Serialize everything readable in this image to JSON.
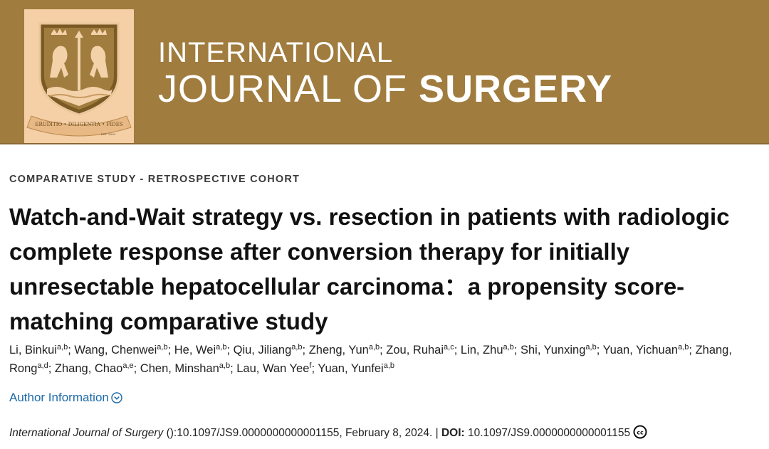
{
  "header": {
    "journal_line1": "INTERNATIONAL",
    "journal_line2_light": "JOURNAL OF ",
    "journal_line2_bold": "SURGERY",
    "crest_motto": "ERUDITIO • DILIGENTIA • FIDES",
    "crest_year": "EST. 2003",
    "colors": {
      "banner": "#a07c3e",
      "crest_bg": "#f5cfa6"
    }
  },
  "article": {
    "category": "COMPARATIVE STUDY - RETROSPECTIVE COHORT",
    "title": "Watch-and-Wait strategy vs. resection in patients with radiologic complete response after conversion therapy for initially unresectable hepatocellular carcinoma：a propensity score-matching comparative study",
    "authors": [
      {
        "name": "Li, Binkui",
        "aff": "a,b"
      },
      {
        "name": "Wang, Chenwei",
        "aff": "a,b"
      },
      {
        "name": "He, Wei",
        "aff": "a,b"
      },
      {
        "name": "Qiu, Jiliang",
        "aff": "a,b"
      },
      {
        "name": "Zheng, Yun",
        "aff": "a,b"
      },
      {
        "name": "Zou, Ruhai",
        "aff": "a,c"
      },
      {
        "name": "Lin, Zhu",
        "aff": "a,b"
      },
      {
        "name": "Shi, Yunxing",
        "aff": "a,b"
      },
      {
        "name": "Yuan, Yichuan",
        "aff": "a,b"
      },
      {
        "name": "Zhang, Rong",
        "aff": "a,d"
      },
      {
        "name": "Zhang, Chao",
        "aff": "a,e"
      },
      {
        "name": "Chen, Minshan",
        "aff": "a,b"
      },
      {
        "name": "Lau, Wan Yee",
        "aff": "f"
      },
      {
        "name": "Yuan, Yunfei",
        "aff": "a,b"
      }
    ],
    "author_info_label": "Author Information",
    "citation": {
      "journal": "International Journal of Surgery",
      "ref": " ():10.1097/JS9.0000000000001155, February 8, 2024. | ",
      "doi_label": "DOI:",
      "doi_value": " 10.1097/JS9.0000000000001155",
      "license_icon": "creative-commons-icon"
    },
    "colors": {
      "link": "#1d6aa8"
    }
  }
}
